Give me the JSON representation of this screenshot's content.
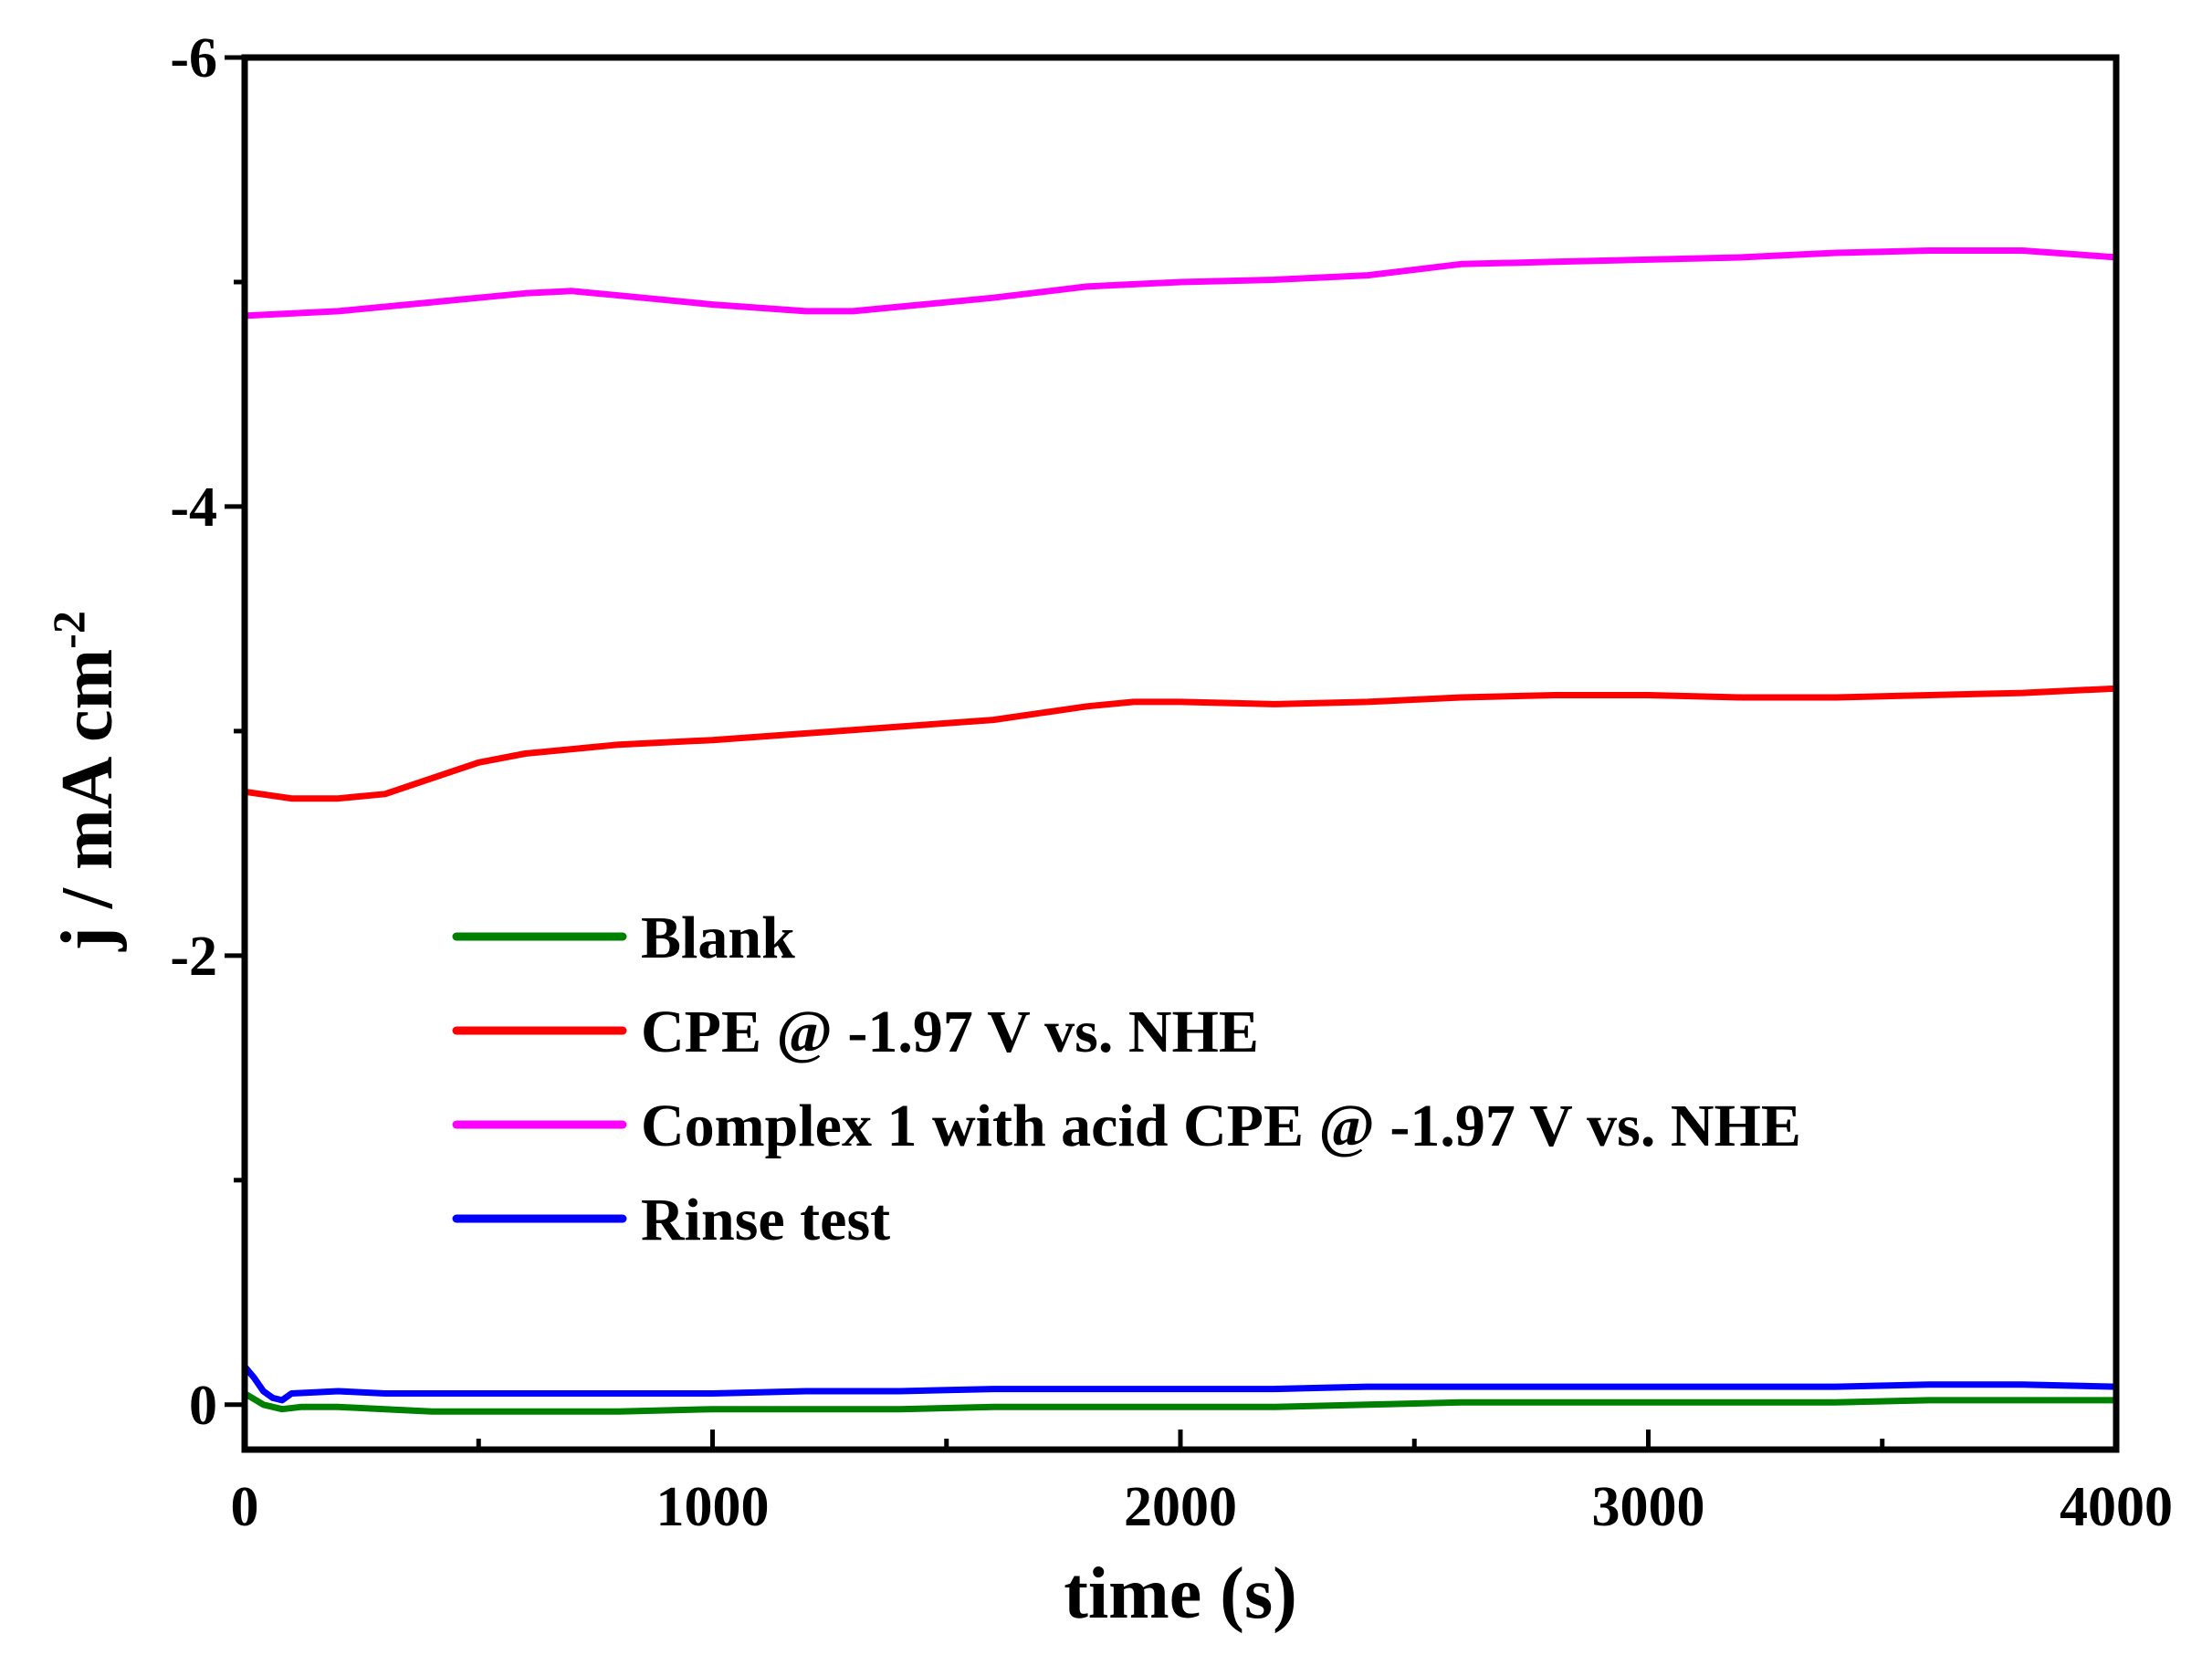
{
  "chart_data": {
    "type": "line",
    "title": "",
    "xlabel": "time (s)",
    "ylabel": "j / mA cm",
    "ylabel_superscript": "-2",
    "xlim": [
      0,
      4000
    ],
    "ylim": [
      0.2,
      -6.0
    ],
    "y_axis_inverted": true,
    "x_ticks": [
      0,
      1000,
      2000,
      3000,
      4000
    ],
    "x_tick_labels": [
      "0",
      "1000",
      "2000",
      "3000",
      "4000"
    ],
    "x_minor_ticks": [
      500,
      1500,
      2500,
      3500
    ],
    "y_ticks": [
      0,
      -2,
      -4,
      -6
    ],
    "y_tick_labels": [
      "0",
      "-2",
      "-4",
      "-6"
    ],
    "y_minor_ticks": [
      -1,
      -3,
      -5
    ],
    "legend_position": "center-left",
    "series": [
      {
        "name": "Blank",
        "color": "#008000",
        "x": [
          0,
          40,
          80,
          120,
          200,
          300,
          400,
          600,
          800,
          1000,
          1200,
          1400,
          1600,
          1800,
          2000,
          2200,
          2400,
          2600,
          2800,
          3000,
          3200,
          3400,
          3600,
          3800,
          4000
        ],
        "y": [
          -0.05,
          0.0,
          0.02,
          0.01,
          0.01,
          0.02,
          0.03,
          0.03,
          0.03,
          0.02,
          0.02,
          0.02,
          0.01,
          0.01,
          0.01,
          0.01,
          0.0,
          -0.01,
          -0.01,
          -0.01,
          -0.01,
          -0.01,
          -0.02,
          -0.02,
          -0.02
        ]
      },
      {
        "name": "CPE @ -1.97 V vs. NHE",
        "color": "#ff0000",
        "x": [
          0,
          100,
          200,
          300,
          400,
          500,
          600,
          800,
          1000,
          1200,
          1400,
          1600,
          1800,
          1900,
          2000,
          2200,
          2400,
          2600,
          2800,
          3000,
          3200,
          3400,
          3600,
          3800,
          4000
        ],
        "y": [
          -2.73,
          -2.7,
          -2.7,
          -2.72,
          -2.79,
          -2.86,
          -2.9,
          -2.94,
          -2.96,
          -2.99,
          -3.02,
          -3.05,
          -3.11,
          -3.13,
          -3.13,
          -3.12,
          -3.13,
          -3.15,
          -3.16,
          -3.16,
          -3.15,
          -3.15,
          -3.16,
          -3.17,
          -3.19
        ]
      },
      {
        "name": "Complex 1 with acid CPE @ -1.97 V vs. NHE",
        "color": "#ff00ff",
        "x": [
          0,
          200,
          400,
          600,
          700,
          800,
          1000,
          1200,
          1300,
          1400,
          1600,
          1800,
          2000,
          2200,
          2400,
          2600,
          2800,
          3000,
          3200,
          3400,
          3600,
          3800,
          4000
        ],
        "y": [
          -4.85,
          -4.87,
          -4.91,
          -4.95,
          -4.96,
          -4.94,
          -4.9,
          -4.87,
          -4.87,
          -4.89,
          -4.93,
          -4.98,
          -5.0,
          -5.01,
          -5.03,
          -5.08,
          -5.09,
          -5.1,
          -5.11,
          -5.13,
          -5.14,
          -5.14,
          -5.11
        ]
      },
      {
        "name": "Rinse test",
        "color": "#0000ff",
        "x": [
          0,
          20,
          40,
          60,
          80,
          100,
          200,
          300,
          400,
          600,
          800,
          1000,
          1200,
          1400,
          1600,
          1800,
          2000,
          2200,
          2400,
          2600,
          2800,
          3000,
          3200,
          3400,
          3600,
          3800,
          4000
        ],
        "y": [
          -0.17,
          -0.12,
          -0.06,
          -0.03,
          -0.02,
          -0.05,
          -0.06,
          -0.05,
          -0.05,
          -0.05,
          -0.05,
          -0.05,
          -0.06,
          -0.06,
          -0.07,
          -0.07,
          -0.07,
          -0.07,
          -0.08,
          -0.08,
          -0.08,
          -0.08,
          -0.08,
          -0.08,
          -0.09,
          -0.09,
          -0.08
        ]
      }
    ]
  }
}
